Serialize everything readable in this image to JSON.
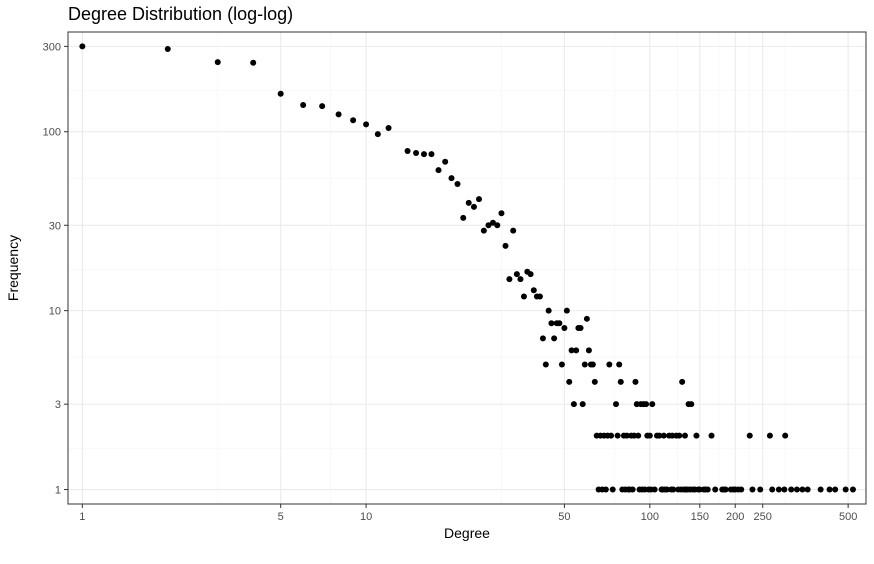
{
  "chart_data": {
    "type": "scatter",
    "title": "Degree Distribution (log-log)",
    "xlabel": "Degree",
    "ylabel": "Frequency",
    "x_scale": "log",
    "y_scale": "log",
    "xlim": [
      0.89,
      578
    ],
    "ylim": [
      0.83,
      361
    ],
    "x_ticks": [
      1,
      5,
      10,
      50,
      100,
      150,
      200,
      250,
      500
    ],
    "x_tick_labels": [
      "1",
      "5",
      "10",
      "50",
      "100",
      "150",
      "200",
      "250",
      "500"
    ],
    "y_ticks": [
      1,
      3,
      10,
      30,
      100,
      300
    ],
    "y_tick_labels": [
      "1",
      "3",
      "10",
      "30",
      "100",
      "300"
    ],
    "x_minor_grid": [
      3,
      7.5,
      30,
      75,
      125,
      175,
      225,
      300,
      750
    ],
    "y_minor_grid": [
      1.7,
      5.5,
      17,
      55,
      170
    ],
    "grid": true,
    "colors": {
      "point": "#000000",
      "grid_major": "#ebebeb",
      "grid_minor": "#f5f5f5",
      "panel_border": "#333333"
    },
    "points": [
      [
        1,
        300
      ],
      [
        2,
        290
      ],
      [
        3,
        245
      ],
      [
        4,
        243
      ],
      [
        5,
        163
      ],
      [
        6,
        141
      ],
      [
        7,
        139
      ],
      [
        8,
        125
      ],
      [
        9,
        116
      ],
      [
        10,
        110
      ],
      [
        11,
        97
      ],
      [
        12,
        105
      ],
      [
        14,
        78
      ],
      [
        15,
        76
      ],
      [
        16,
        75
      ],
      [
        17,
        75
      ],
      [
        18,
        61
      ],
      [
        19,
        68
      ],
      [
        20,
        55
      ],
      [
        21,
        51
      ],
      [
        22,
        33
      ],
      [
        23,
        40
      ],
      [
        24,
        38
      ],
      [
        25,
        42
      ],
      [
        26,
        28
      ],
      [
        27,
        30
      ],
      [
        28,
        31
      ],
      [
        29,
        30
      ],
      [
        30,
        35
      ],
      [
        31,
        23
      ],
      [
        32,
        15
      ],
      [
        33,
        28
      ],
      [
        34,
        16
      ],
      [
        35,
        15
      ],
      [
        36,
        12
      ],
      [
        37,
        16.5
      ],
      [
        38,
        16
      ],
      [
        39,
        13
      ],
      [
        40,
        12
      ],
      [
        41,
        12
      ],
      [
        42,
        7
      ],
      [
        43,
        5
      ],
      [
        44,
        10
      ],
      [
        45,
        8.5
      ],
      [
        46,
        7
      ],
      [
        47,
        8.5
      ],
      [
        48,
        8.5
      ],
      [
        49,
        5
      ],
      [
        50,
        8
      ],
      [
        51,
        10
      ],
      [
        52,
        4
      ],
      [
        53,
        6
      ],
      [
        54,
        3
      ],
      [
        55,
        6
      ],
      [
        56,
        8
      ],
      [
        57,
        8
      ],
      [
        58,
        3
      ],
      [
        59,
        5
      ],
      [
        60,
        9
      ],
      [
        61,
        6
      ],
      [
        62,
        5
      ],
      [
        63,
        5
      ],
      [
        64,
        4
      ],
      [
        65,
        2
      ],
      [
        66,
        1
      ],
      [
        67,
        2
      ],
      [
        68,
        1
      ],
      [
        69,
        2
      ],
      [
        70,
        1
      ],
      [
        71,
        2
      ],
      [
        72,
        5
      ],
      [
        73,
        2
      ],
      [
        74,
        1
      ],
      [
        76,
        3
      ],
      [
        77,
        2
      ],
      [
        78,
        5
      ],
      [
        79,
        4
      ],
      [
        80,
        1
      ],
      [
        81,
        2
      ],
      [
        82,
        1
      ],
      [
        83,
        2
      ],
      [
        84,
        1
      ],
      [
        85,
        1
      ],
      [
        86,
        2
      ],
      [
        87,
        1
      ],
      [
        88,
        2
      ],
      [
        89,
        4
      ],
      [
        90,
        3
      ],
      [
        91,
        2
      ],
      [
        92,
        1
      ],
      [
        93,
        3
      ],
      [
        94,
        1
      ],
      [
        95,
        3
      ],
      [
        96,
        1
      ],
      [
        97,
        3
      ],
      [
        98,
        2
      ],
      [
        99,
        1
      ],
      [
        100,
        2
      ],
      [
        101,
        1
      ],
      [
        102,
        3
      ],
      [
        104,
        1
      ],
      [
        106,
        2
      ],
      [
        108,
        2
      ],
      [
        110,
        1
      ],
      [
        111,
        1
      ],
      [
        112,
        2
      ],
      [
        113,
        1
      ],
      [
        115,
        1
      ],
      [
        117,
        2
      ],
      [
        119,
        1
      ],
      [
        120,
        2
      ],
      [
        121,
        1
      ],
      [
        124,
        2
      ],
      [
        126,
        1
      ],
      [
        127,
        2
      ],
      [
        129,
        1
      ],
      [
        130,
        4
      ],
      [
        132,
        1
      ],
      [
        133,
        2
      ],
      [
        134,
        1
      ],
      [
        136,
        1
      ],
      [
        137,
        3
      ],
      [
        139,
        1
      ],
      [
        140,
        3
      ],
      [
        142,
        1
      ],
      [
        144,
        1
      ],
      [
        146,
        2
      ],
      [
        148,
        1
      ],
      [
        150,
        1
      ],
      [
        155,
        1
      ],
      [
        157,
        1
      ],
      [
        160,
        1
      ],
      [
        165,
        2
      ],
      [
        170,
        1
      ],
      [
        180,
        1
      ],
      [
        183,
        1
      ],
      [
        185,
        1
      ],
      [
        193,
        1
      ],
      [
        197,
        1
      ],
      [
        200,
        1
      ],
      [
        205,
        1
      ],
      [
        210,
        1
      ],
      [
        225,
        2
      ],
      [
        230,
        1
      ],
      [
        245,
        1
      ],
      [
        265,
        2
      ],
      [
        270,
        1
      ],
      [
        285,
        1
      ],
      [
        298,
        1
      ],
      [
        300,
        2
      ],
      [
        315,
        1
      ],
      [
        330,
        1
      ],
      [
        345,
        1
      ],
      [
        360,
        1
      ],
      [
        400,
        1
      ],
      [
        430,
        1
      ],
      [
        450,
        1
      ],
      [
        490,
        1
      ],
      [
        520,
        1
      ]
    ]
  }
}
